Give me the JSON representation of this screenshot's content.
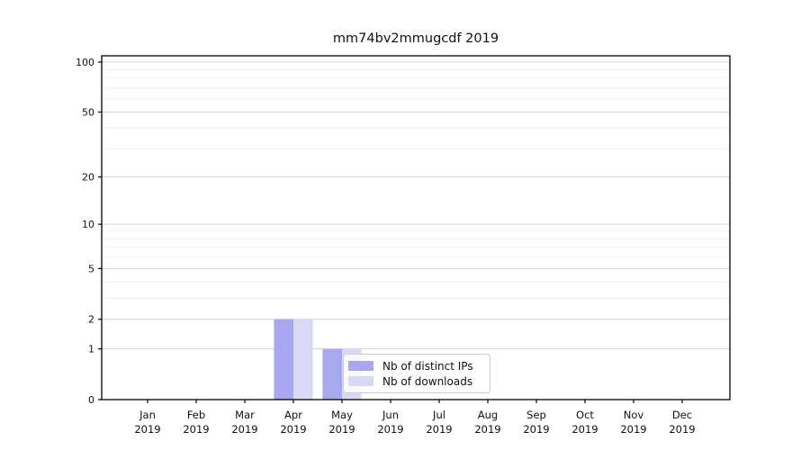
{
  "chart_data": {
    "type": "bar",
    "title": "mm74bv2mmugcdf 2019",
    "categories": [
      "Jan",
      "Feb",
      "Mar",
      "Apr",
      "May",
      "Jun",
      "Jul",
      "Aug",
      "Sep",
      "Oct",
      "Nov",
      "Dec"
    ],
    "category_year": "2019",
    "series": [
      {
        "name": "Nb of distinct IPs",
        "color": "#a8a8f0",
        "values": [
          0,
          0,
          0,
          2,
          1,
          0,
          0,
          0,
          0,
          0,
          0,
          0
        ]
      },
      {
        "name": "Nb of downloads",
        "color": "#d9d9f6",
        "values": [
          0,
          0,
          0,
          2,
          1,
          0,
          0,
          0,
          0,
          0,
          0,
          0
        ]
      }
    ],
    "xlabel": "",
    "ylabel": "",
    "yscale": "log1p",
    "yticks": [
      0,
      1,
      2,
      5,
      10,
      20,
      50,
      100
    ],
    "minor_gridlines": [
      3,
      4,
      6,
      7,
      8,
      9,
      30,
      40,
      60,
      70,
      80,
      90
    ],
    "ylim": [
      0,
      109
    ],
    "grid": true,
    "legend_position": "lower center-right, overlapping May downloads bar"
  },
  "colors": {
    "spine": "#000000",
    "major_grid": "#d4d4d4",
    "minor_grid": "#f0f0f0",
    "background": "#ffffff"
  }
}
